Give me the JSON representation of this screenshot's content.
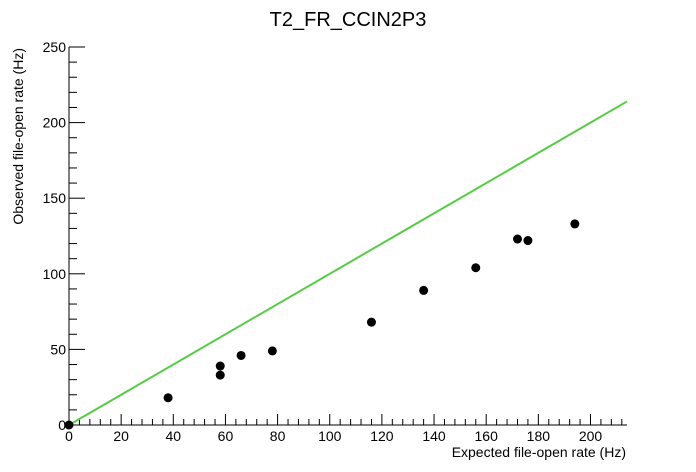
{
  "chart_data": {
    "type": "scatter",
    "title": "T2_FR_CCIN2P3",
    "xlabel": "Expected file-open rate (Hz)",
    "ylabel": "Observed file-open rate (Hz)",
    "xlim": [
      0,
      214
    ],
    "ylim": [
      0,
      250
    ],
    "x_ticks": [
      0,
      20,
      40,
      60,
      80,
      100,
      120,
      140,
      160,
      180,
      200
    ],
    "y_ticks": [
      0,
      50,
      100,
      150,
      200,
      250
    ],
    "grid": false,
    "legend": "none",
    "points": [
      {
        "x": 0,
        "y": 0
      },
      {
        "x": 38,
        "y": 18
      },
      {
        "x": 58,
        "y": 33
      },
      {
        "x": 58,
        "y": 39
      },
      {
        "x": 66,
        "y": 46
      },
      {
        "x": 78,
        "y": 49
      },
      {
        "x": 116,
        "y": 68
      },
      {
        "x": 136,
        "y": 89
      },
      {
        "x": 156,
        "y": 104
      },
      {
        "x": 172,
        "y": 123
      },
      {
        "x": 176,
        "y": 122
      },
      {
        "x": 194,
        "y": 133
      }
    ],
    "reference_line": {
      "x": [
        0,
        214
      ],
      "y": [
        0,
        214
      ],
      "color": "#55cc44"
    },
    "marker_color": "#000000"
  }
}
